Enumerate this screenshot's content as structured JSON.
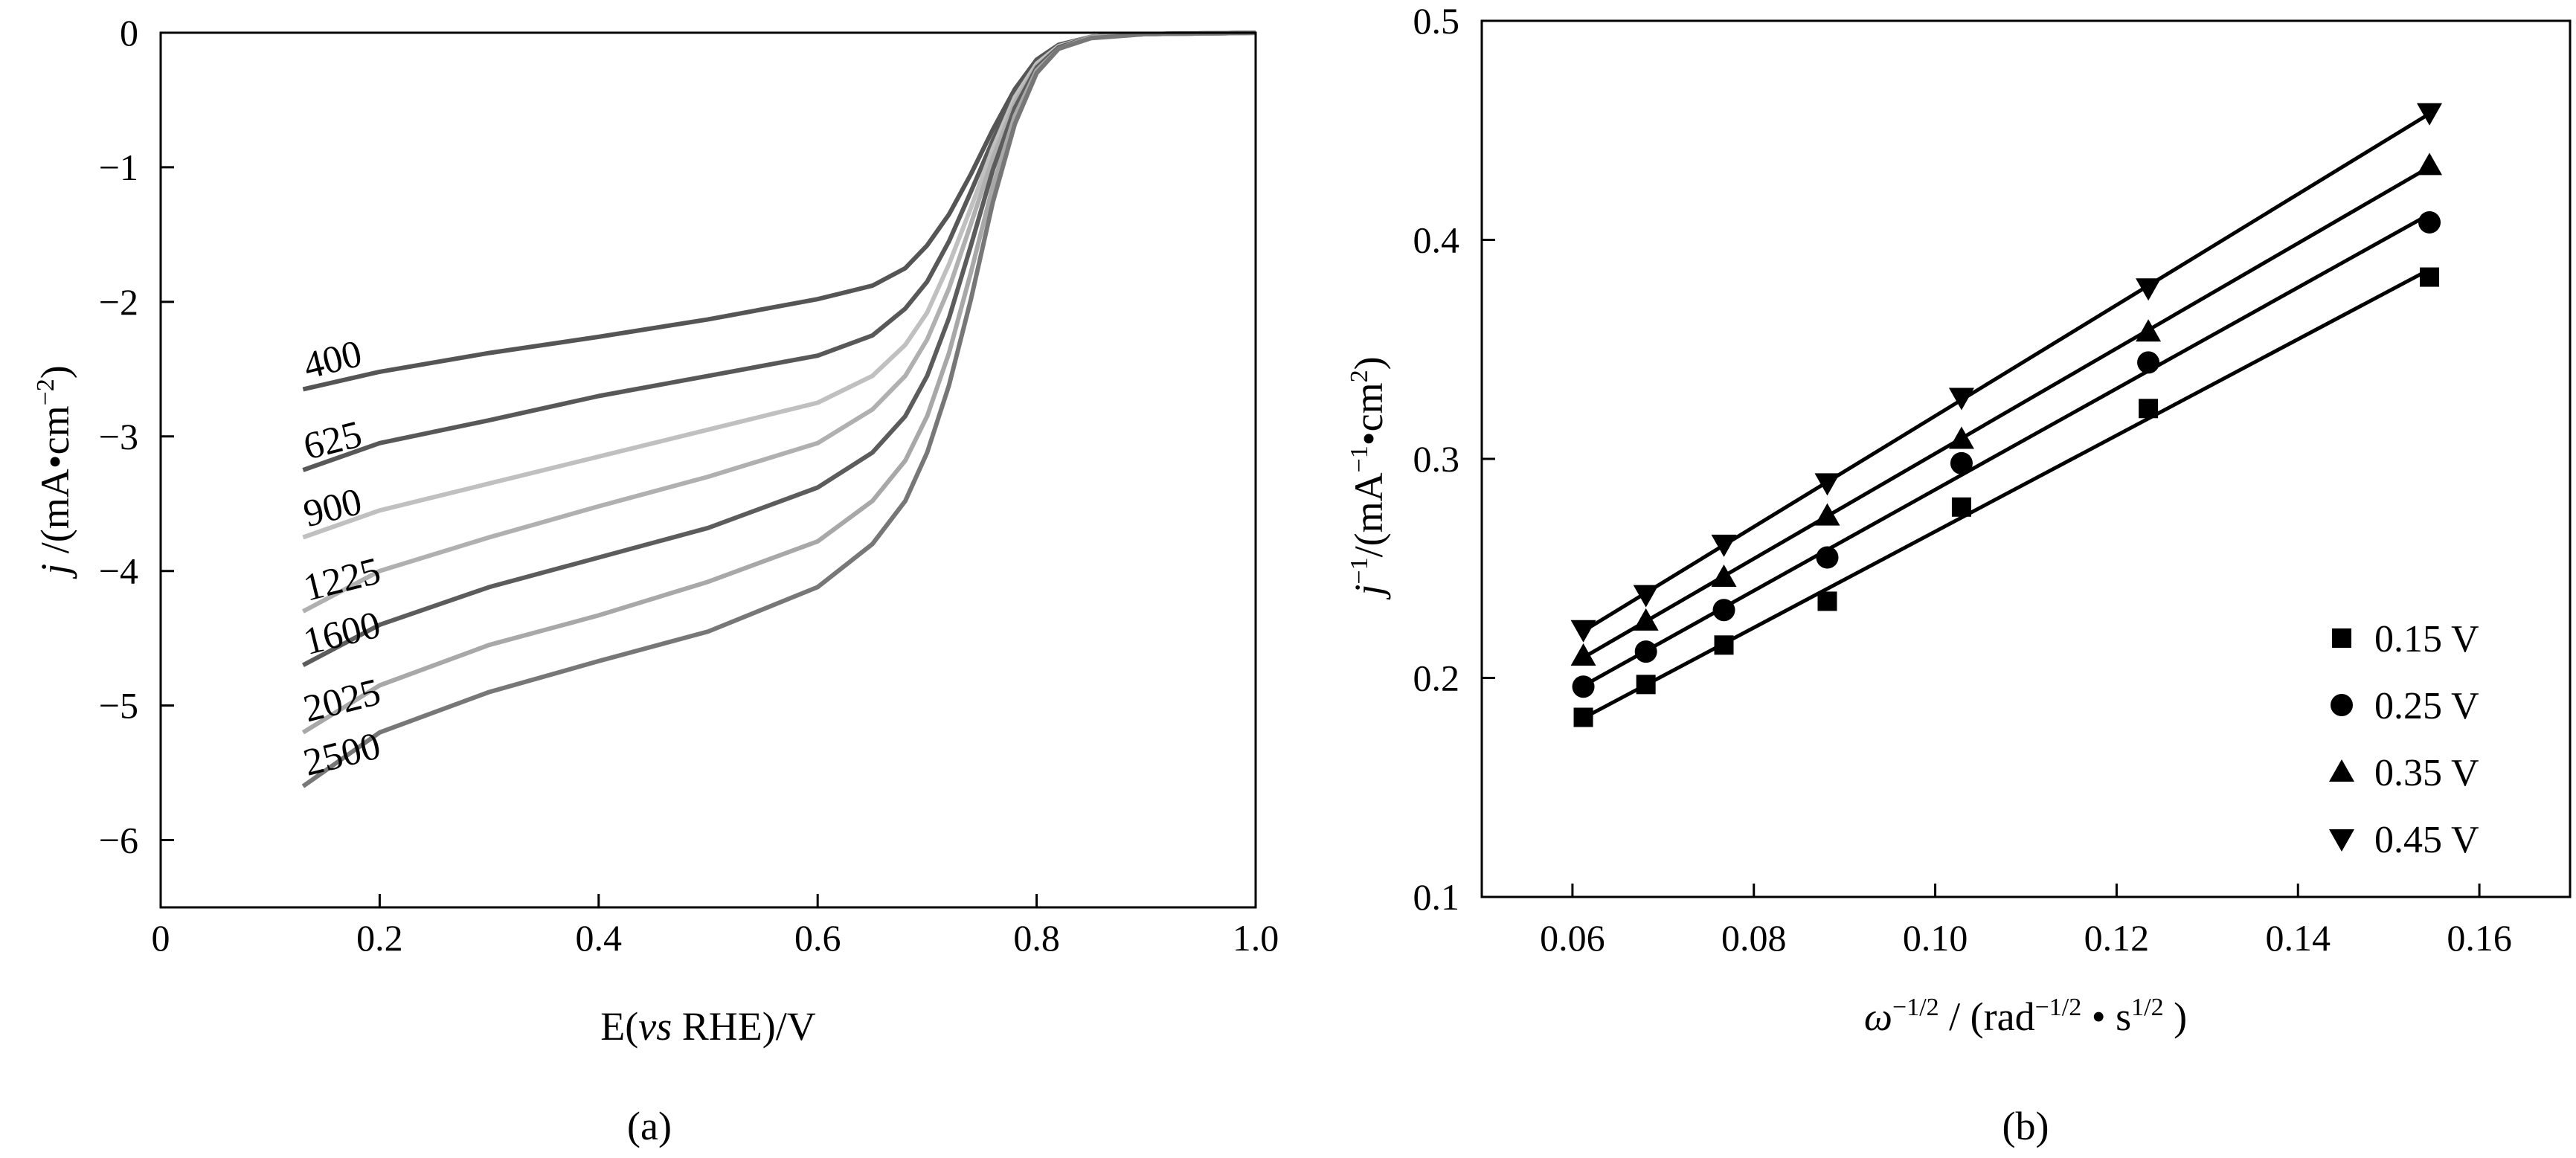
{
  "chart_data": [
    {
      "type": "line",
      "panel_label": "(a)",
      "xlabel": {
        "prefix": "E(",
        "italic": "vs",
        "suffix": " RHE)/V"
      },
      "ylabel": {
        "italic": "j",
        "text": " /(mA•cm",
        "sup": "−2",
        "close": ")"
      },
      "xlim": [
        0,
        1.0
      ],
      "ylim": [
        -6.5,
        0
      ],
      "xticks": [
        0,
        0.2,
        0.4,
        0.6,
        0.8,
        1.0
      ],
      "xtick_labels": [
        "0",
        "0.2",
        "0.4",
        "0.6",
        "0.8",
        "1.0"
      ],
      "yticks": [
        0,
        -1,
        -2,
        -3,
        -4,
        -5,
        -6
      ],
      "ytick_labels": [
        "0",
        "−1",
        "−2",
        "−3",
        "−4",
        "−5",
        "−6"
      ],
      "grid": false,
      "series": [
        {
          "name": "400",
          "color": "#555555",
          "x": [
            0.13,
            0.2,
            0.3,
            0.4,
            0.5,
            0.6,
            0.65,
            0.68,
            0.7,
            0.72,
            0.74,
            0.76,
            0.78,
            0.8,
            0.82,
            0.85,
            0.9,
            1.0
          ],
          "y": [
            -2.65,
            -2.52,
            -2.38,
            -2.26,
            -2.13,
            -1.98,
            -1.88,
            -1.75,
            -1.58,
            -1.35,
            -1.05,
            -0.72,
            -0.42,
            -0.2,
            -0.09,
            -0.03,
            -0.01,
            0.0
          ]
        },
        {
          "name": "625",
          "color": "#585858",
          "x": [
            0.13,
            0.2,
            0.3,
            0.4,
            0.5,
            0.6,
            0.65,
            0.68,
            0.7,
            0.72,
            0.74,
            0.76,
            0.78,
            0.8,
            0.82,
            0.85,
            0.9,
            1.0
          ],
          "y": [
            -3.25,
            -3.05,
            -2.88,
            -2.7,
            -2.55,
            -2.4,
            -2.25,
            -2.05,
            -1.85,
            -1.55,
            -1.18,
            -0.8,
            -0.45,
            -0.22,
            -0.1,
            -0.03,
            -0.01,
            0.0
          ]
        },
        {
          "name": "900",
          "color": "#c0c0c0",
          "x": [
            0.13,
            0.2,
            0.3,
            0.4,
            0.5,
            0.6,
            0.65,
            0.68,
            0.7,
            0.72,
            0.74,
            0.76,
            0.78,
            0.8,
            0.82,
            0.85,
            0.9,
            1.0
          ],
          "y": [
            -3.75,
            -3.55,
            -3.35,
            -3.15,
            -2.95,
            -2.75,
            -2.55,
            -2.32,
            -2.08,
            -1.72,
            -1.3,
            -0.86,
            -0.48,
            -0.23,
            -0.1,
            -0.03,
            -0.01,
            0.0
          ]
        },
        {
          "name": "1225",
          "color": "#b0b0b0",
          "x": [
            0.13,
            0.2,
            0.3,
            0.4,
            0.5,
            0.6,
            0.65,
            0.68,
            0.7,
            0.72,
            0.74,
            0.76,
            0.78,
            0.8,
            0.82,
            0.85,
            0.9,
            1.0
          ],
          "y": [
            -4.3,
            -4.0,
            -3.75,
            -3.52,
            -3.3,
            -3.05,
            -2.8,
            -2.55,
            -2.28,
            -1.9,
            -1.42,
            -0.93,
            -0.52,
            -0.25,
            -0.11,
            -0.03,
            -0.01,
            0.0
          ]
        },
        {
          "name": "1600",
          "color": "#5c5c5c",
          "x": [
            0.13,
            0.2,
            0.3,
            0.4,
            0.5,
            0.6,
            0.65,
            0.68,
            0.7,
            0.72,
            0.74,
            0.76,
            0.78,
            0.8,
            0.82,
            0.85,
            0.9,
            1.0
          ],
          "y": [
            -4.7,
            -4.4,
            -4.12,
            -3.9,
            -3.68,
            -3.38,
            -3.12,
            -2.85,
            -2.55,
            -2.12,
            -1.58,
            -1.02,
            -0.56,
            -0.26,
            -0.11,
            -0.03,
            -0.01,
            0.0
          ]
        },
        {
          "name": "2025",
          "color": "#a8a8a8",
          "x": [
            0.13,
            0.2,
            0.3,
            0.4,
            0.5,
            0.6,
            0.65,
            0.68,
            0.7,
            0.72,
            0.74,
            0.76,
            0.78,
            0.8,
            0.82,
            0.85,
            0.9,
            1.0
          ],
          "y": [
            -5.2,
            -4.85,
            -4.55,
            -4.33,
            -4.08,
            -3.78,
            -3.48,
            -3.18,
            -2.85,
            -2.38,
            -1.78,
            -1.14,
            -0.62,
            -0.28,
            -0.12,
            -0.03,
            -0.01,
            0.0
          ]
        },
        {
          "name": "2500",
          "color": "#777777",
          "x": [
            0.13,
            0.2,
            0.3,
            0.4,
            0.5,
            0.6,
            0.65,
            0.68,
            0.7,
            0.72,
            0.74,
            0.76,
            0.78,
            0.8,
            0.82,
            0.85,
            0.9,
            1.0
          ],
          "y": [
            -5.6,
            -5.2,
            -4.9,
            -4.67,
            -4.45,
            -4.12,
            -3.8,
            -3.48,
            -3.12,
            -2.62,
            -1.98,
            -1.26,
            -0.68,
            -0.3,
            -0.12,
            -0.04,
            -0.01,
            0.0
          ]
        }
      ]
    },
    {
      "type": "scatter",
      "panel_label": "(b)",
      "xlabel": {
        "omega": "ω",
        "omega_sup": "−1/2",
        "mid": " / (rad",
        "rad_sup": "−1/2",
        "dot": " • s",
        "s_sup": "1/2",
        "close": " )"
      },
      "ylabel": {
        "italic": "j",
        "j_sup": "−1",
        "mid": "/(mA",
        "ma_sup": "−1",
        "dot": "•cm",
        "cm_sup": "2",
        "close": ")"
      },
      "xlim": [
        0.05,
        0.17
      ],
      "ylim": [
        0.1,
        0.5
      ],
      "xticks": [
        0.06,
        0.08,
        0.1,
        0.12,
        0.14,
        0.16
      ],
      "xtick_labels": [
        "0.06",
        "0.08",
        "0.10",
        "0.12",
        "0.14",
        "0.16"
      ],
      "yticks": [
        0.1,
        0.2,
        0.3,
        0.4,
        0.5
      ],
      "ytick_labels": [
        "0.1",
        "0.2",
        "0.3",
        "0.4",
        "0.5"
      ],
      "grid": false,
      "legend_position": "bottom-right",
      "x": [
        0.0612,
        0.0681,
        0.0767,
        0.0881,
        0.1029,
        0.1235,
        0.1545
      ],
      "series": [
        {
          "name": "0.15 V",
          "marker": "square",
          "values": [
            0.182,
            0.197,
            0.215,
            0.235,
            0.278,
            0.323,
            0.383
          ]
        },
        {
          "name": "0.25 V",
          "marker": "circle",
          "values": [
            0.196,
            0.212,
            0.231,
            0.255,
            0.298,
            0.344,
            0.408
          ]
        },
        {
          "name": "0.35 V",
          "marker": "triangle-up",
          "values": [
            0.21,
            0.226,
            0.246,
            0.274,
            0.309,
            0.358,
            0.434
          ]
        },
        {
          "name": "0.45 V",
          "marker": "triangle-down",
          "values": [
            0.222,
            0.238,
            0.261,
            0.289,
            0.328,
            0.378,
            0.458
          ]
        }
      ]
    }
  ]
}
